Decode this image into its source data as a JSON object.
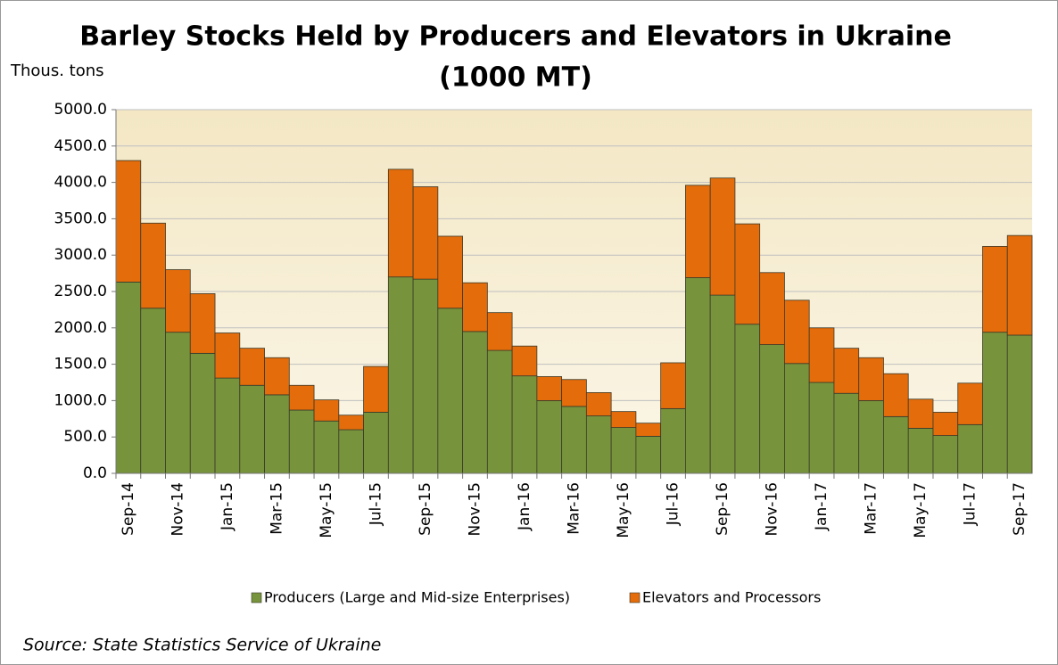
{
  "chart_data": {
    "type": "stacked_bar",
    "title": "Barley Stocks Held by Producers and Elevators in Ukraine",
    "subtitle": "(1000 MT)",
    "y_label": "Thous. tons",
    "source": "Source: State Statistics Service of Ukraine",
    "categories": [
      "Sep-14",
      null,
      "Nov-14",
      null,
      "Jan-15",
      null,
      "Mar-15",
      null,
      "May-15",
      null,
      "Jul-15",
      null,
      "Sep-15",
      null,
      "Nov-15",
      null,
      "Jan-16",
      null,
      "Mar-16",
      null,
      "May-16",
      null,
      "Jul-16",
      null,
      "Sep-16",
      null,
      "Nov-16",
      null,
      "Jan-17",
      null,
      "Mar-17",
      null,
      "May-17",
      null,
      "Jul-17",
      null,
      "Sep-17"
    ],
    "series": [
      {
        "name": "Producers (Large and Mid-size Enterprises)",
        "color": "#77933c",
        "values": [
          2630,
          2270,
          1940,
          1650,
          1310,
          1210,
          1080,
          870,
          720,
          600,
          840,
          2700,
          2670,
          2270,
          1950,
          1690,
          1340,
          1000,
          920,
          790,
          630,
          510,
          890,
          2690,
          2450,
          2050,
          1770,
          1510,
          1250,
          1100,
          1000,
          780,
          620,
          520,
          670,
          1940,
          1900
        ]
      },
      {
        "name": "Elevators and Processors",
        "color": "#e46c0a",
        "values": [
          1670,
          1170,
          860,
          820,
          620,
          510,
          510,
          340,
          290,
          200,
          630,
          1480,
          1270,
          990,
          670,
          520,
          410,
          330,
          370,
          320,
          220,
          180,
          630,
          1270,
          1610,
          1380,
          990,
          870,
          750,
          620,
          590,
          590,
          400,
          320,
          570,
          1180,
          1370
        ]
      }
    ],
    "ylim": [
      0,
      5000
    ],
    "yticks": [
      {
        "value": 0,
        "label": "0.0"
      },
      {
        "value": 500,
        "label": "500.0"
      },
      {
        "value": 1000,
        "label": "1000.0"
      },
      {
        "value": 1500,
        "label": "1500.0"
      },
      {
        "value": 2000,
        "label": "2000.0"
      },
      {
        "value": 2500,
        "label": "2500.0"
      },
      {
        "value": 3000,
        "label": "3000.0"
      },
      {
        "value": 3500,
        "label": "3500.0"
      },
      {
        "value": 4000,
        "label": "4000.0"
      },
      {
        "value": 4500,
        "label": "4500.0"
      },
      {
        "value": 5000,
        "label": "5000.0"
      }
    ],
    "grid": true,
    "legend": "bottom"
  }
}
